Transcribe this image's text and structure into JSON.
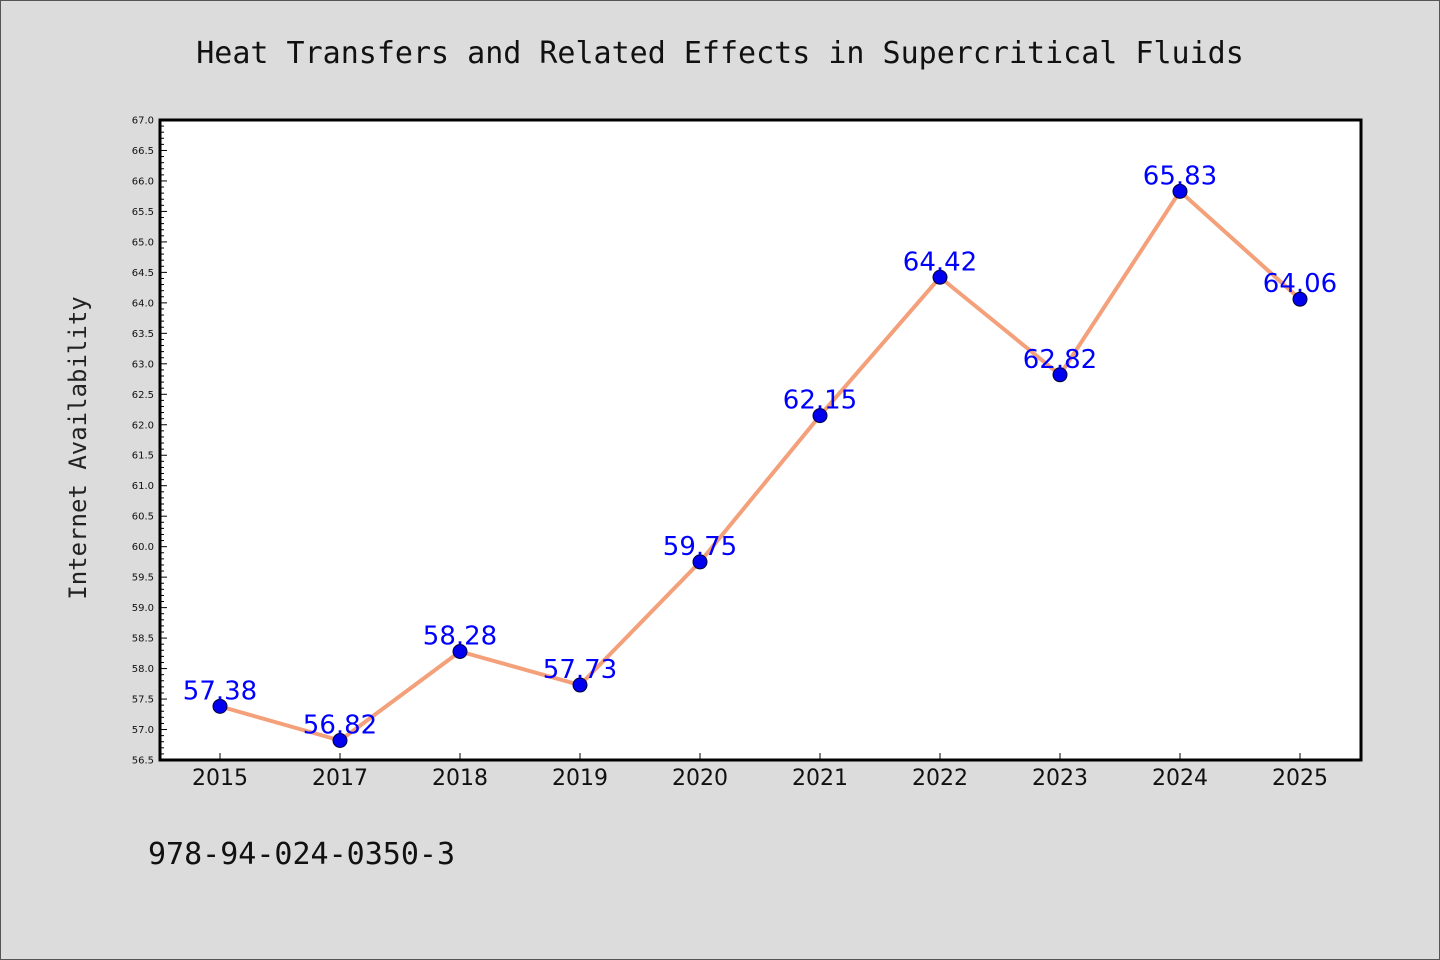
{
  "chart_data": {
    "type": "line",
    "title": "Heat Transfers and Related Effects in Supercritical Fluids",
    "xlabel": "",
    "ylabel": "Internet Availability",
    "categories": [
      "2015",
      "2017",
      "2018",
      "2019",
      "2020",
      "2021",
      "2022",
      "2023",
      "2024",
      "2025"
    ],
    "series": [
      {
        "values": [
          57.38,
          56.82,
          58.28,
          57.73,
          59.75,
          62.15,
          64.42,
          62.82,
          65.83,
          64.06
        ],
        "data_labels": [
          "57.38",
          "56.82",
          "58.28",
          "57.73",
          "59.75",
          "62.15",
          "64.42",
          "62.82",
          "65.83",
          "64.06"
        ]
      }
    ],
    "ylim": [
      56.5,
      67.0
    ],
    "y_ticks": [
      "56.5",
      "57.0",
      "57.5",
      "58.0",
      "58.5",
      "59.0",
      "59.5",
      "60.0",
      "60.5",
      "61.0",
      "61.5",
      "62.0",
      "62.5",
      "63.0",
      "63.5",
      "64.0",
      "64.5",
      "65.0",
      "65.5",
      "66.0",
      "66.5",
      "67.0"
    ],
    "grid": false,
    "legend": "none",
    "colors": {
      "line": "#f4a07a",
      "marker": "#0000ee",
      "label": "#0000ff",
      "plot_background": "#ffffff",
      "page_background": "#dcdcdc"
    }
  },
  "footer": {
    "isbn": "978-94-024-0350-3"
  }
}
